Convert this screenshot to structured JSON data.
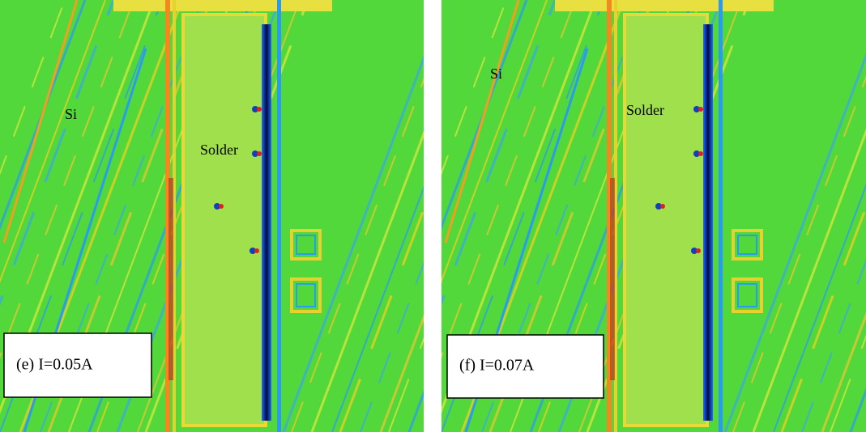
{
  "panels": [
    {
      "caption": "(e) I=0.05A",
      "labels": [
        "Si",
        "Solder"
      ]
    },
    {
      "caption": "(f) I=0.07A",
      "labels": [
        "Si",
        "Solder"
      ]
    }
  ]
}
